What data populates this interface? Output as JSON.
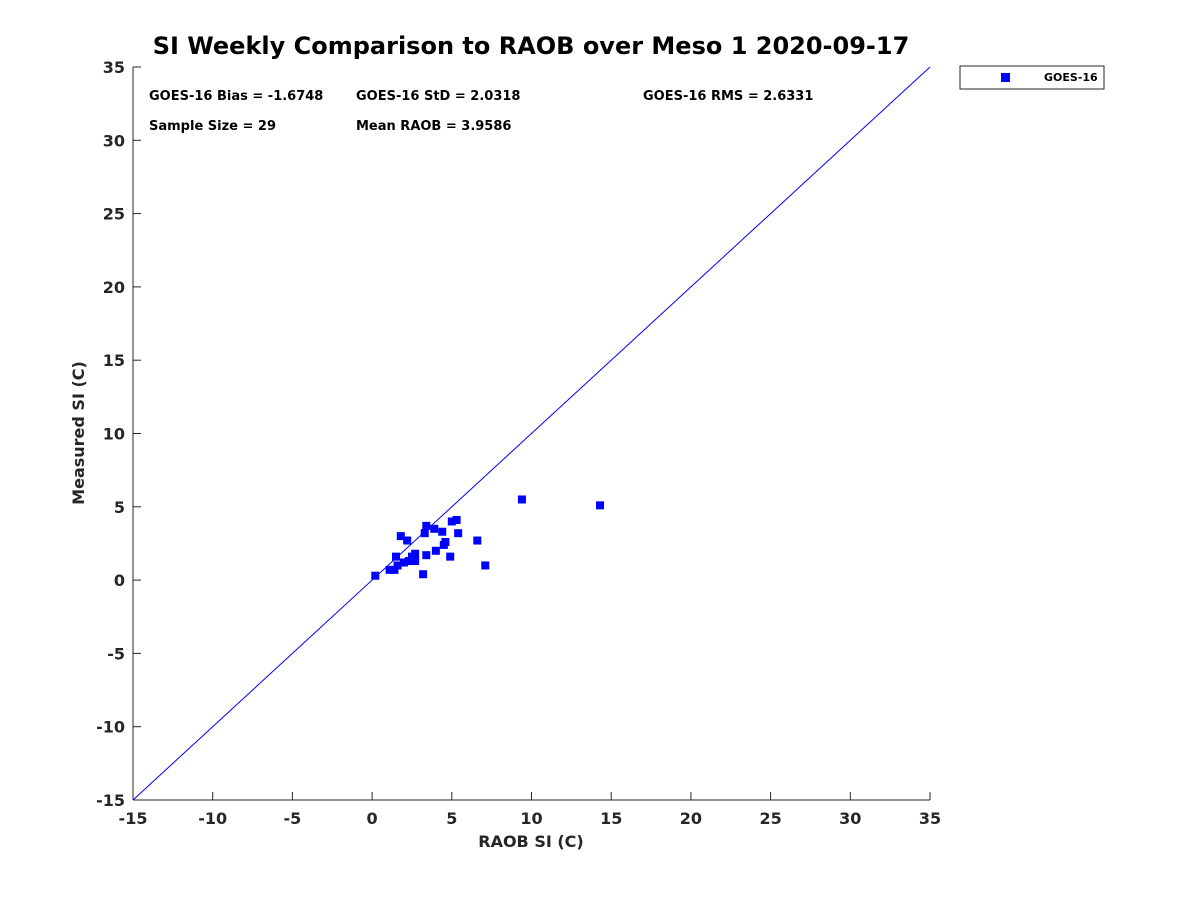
{
  "chart_data": {
    "type": "scatter",
    "title": "SI Weekly Comparison to RAOB over Meso 1 2020-09-17",
    "xlabel": "RAOB SI (C)",
    "ylabel": "Measured SI (C)",
    "xlim": [
      -15,
      35
    ],
    "ylim": [
      -15,
      35
    ],
    "xticks": [
      -15,
      -10,
      -5,
      0,
      5,
      10,
      15,
      20,
      25,
      30,
      35
    ],
    "yticks": [
      -15,
      -10,
      -5,
      0,
      5,
      10,
      15,
      20,
      25,
      30,
      35
    ],
    "xtick_labels": [
      "-15",
      "-10",
      "-5",
      "0",
      "5",
      "10",
      "15",
      "20",
      "25",
      "30",
      "35"
    ],
    "ytick_labels": [
      "-15",
      "-10",
      "-5",
      "0",
      "5",
      "10",
      "15",
      "20",
      "25",
      "30",
      "35"
    ],
    "grid": false,
    "reference_line": {
      "name": "1:1 line",
      "color": "#0000ff",
      "from": [
        -15,
        -15
      ],
      "to": [
        35,
        35
      ]
    },
    "series": [
      {
        "name": "GOES-16",
        "color": "#0000ff",
        "marker": "square",
        "x": [
          0.2,
          1.1,
          1.4,
          1.5,
          1.6,
          1.8,
          2.0,
          2.2,
          2.3,
          2.5,
          2.7,
          2.7,
          3.2,
          3.3,
          3.4,
          3.4,
          3.9,
          4.0,
          4.4,
          4.5,
          4.6,
          4.9,
          5.0,
          5.3,
          5.4,
          6.6,
          7.1,
          9.4,
          14.3
        ],
        "y": [
          0.3,
          0.7,
          0.7,
          1.6,
          1.0,
          3.0,
          1.2,
          2.7,
          1.3,
          1.6,
          1.3,
          1.8,
          0.4,
          3.2,
          3.7,
          1.7,
          3.5,
          2.0,
          3.3,
          2.4,
          2.6,
          1.6,
          4.0,
          4.1,
          3.2,
          2.7,
          1.0,
          5.5,
          5.1
        ]
      }
    ],
    "legend": {
      "position": "outside-top-right",
      "entries": [
        "GOES-16"
      ]
    },
    "stats": [
      {
        "label": "GOES-16 Bias = -1.6748"
      },
      {
        "label": "GOES-16 StD = 2.0318"
      },
      {
        "label": "GOES-16 RMS = 2.6331"
      },
      {
        "label": "Sample Size = 29"
      },
      {
        "label": "Mean RAOB = 3.9586"
      }
    ]
  }
}
